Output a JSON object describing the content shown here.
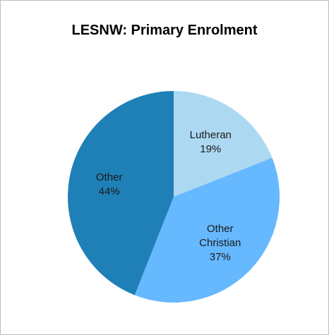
{
  "chart_data": {
    "type": "pie",
    "title": "LESNW: Primary Enrolment",
    "categories": [
      "Lutheran",
      "Other Christian",
      "Other"
    ],
    "values": [
      19,
      37,
      44
    ],
    "value_labels": [
      "19%",
      "37%",
      "44%"
    ],
    "colors": [
      "#add8f2",
      "#66b8ff",
      "#1f80b8"
    ]
  }
}
